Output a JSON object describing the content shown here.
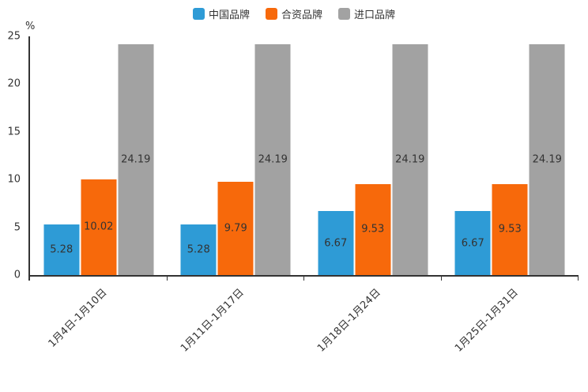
{
  "chart_data": {
    "type": "bar",
    "title": "",
    "unit_label": "%",
    "categories": [
      "1月4日-1月10日",
      "1月11日-1月17日",
      "1月18日-1月24日",
      "1月25日-1月31日"
    ],
    "series": [
      {
        "name": "中国品牌",
        "color": "#2E9BD6",
        "values": [
          5.28,
          5.28,
          6.67,
          6.67
        ]
      },
      {
        "name": "合资品牌",
        "color": "#F7690B",
        "values": [
          10.02,
          9.79,
          9.53,
          9.53
        ]
      },
      {
        "name": "进口品牌",
        "color": "#A2A2A2",
        "values": [
          24.19,
          24.19,
          24.19,
          24.19
        ]
      }
    ],
    "ylim": [
      0,
      25
    ],
    "yticks": [
      0,
      5,
      10,
      15,
      20,
      25
    ],
    "legend_position": "top",
    "grid": false,
    "x_label_rotation": -45,
    "value_label_position": "inside-middle",
    "label_color": "#333333",
    "axis_color": "#333333",
    "background_color": "#ffffff"
  }
}
